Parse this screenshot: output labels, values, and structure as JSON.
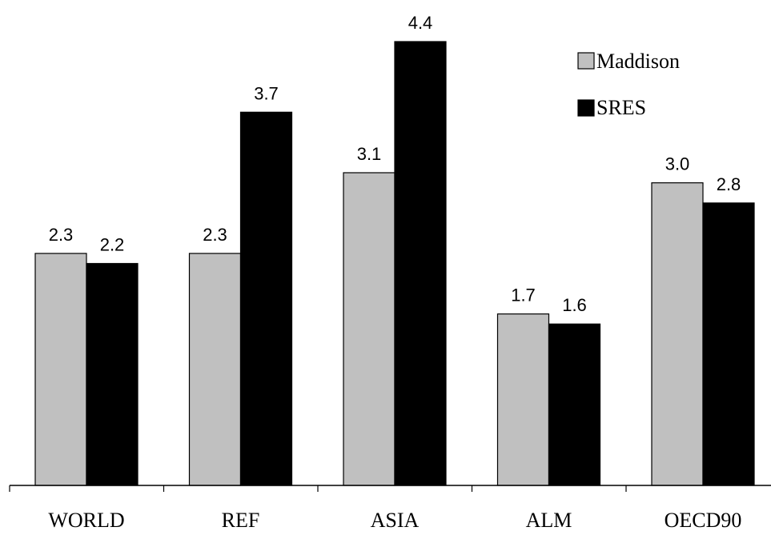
{
  "chart_data": {
    "type": "bar",
    "title": "",
    "xlabel": "",
    "ylabel": "",
    "categories": [
      "WORLD",
      "REF",
      "ASIA",
      "ALM",
      "OECD90"
    ],
    "series": [
      {
        "name": "Maddison",
        "color": "#c0c0c0",
        "values": [
          2.3,
          2.3,
          3.1,
          1.7,
          3.0
        ]
      },
      {
        "name": "SRES",
        "color": "#000000",
        "values": [
          2.2,
          3.7,
          4.4,
          1.6,
          2.8
        ]
      }
    ],
    "value_labels": [
      [
        "2.3",
        "2.3",
        "3.1",
        "1.7",
        "3.0"
      ],
      [
        "2.2",
        "3.7",
        "4.4",
        "1.6",
        "2.8"
      ]
    ],
    "ylim": [
      0,
      4.4
    ],
    "grid": false,
    "legend_position": "top-right"
  }
}
